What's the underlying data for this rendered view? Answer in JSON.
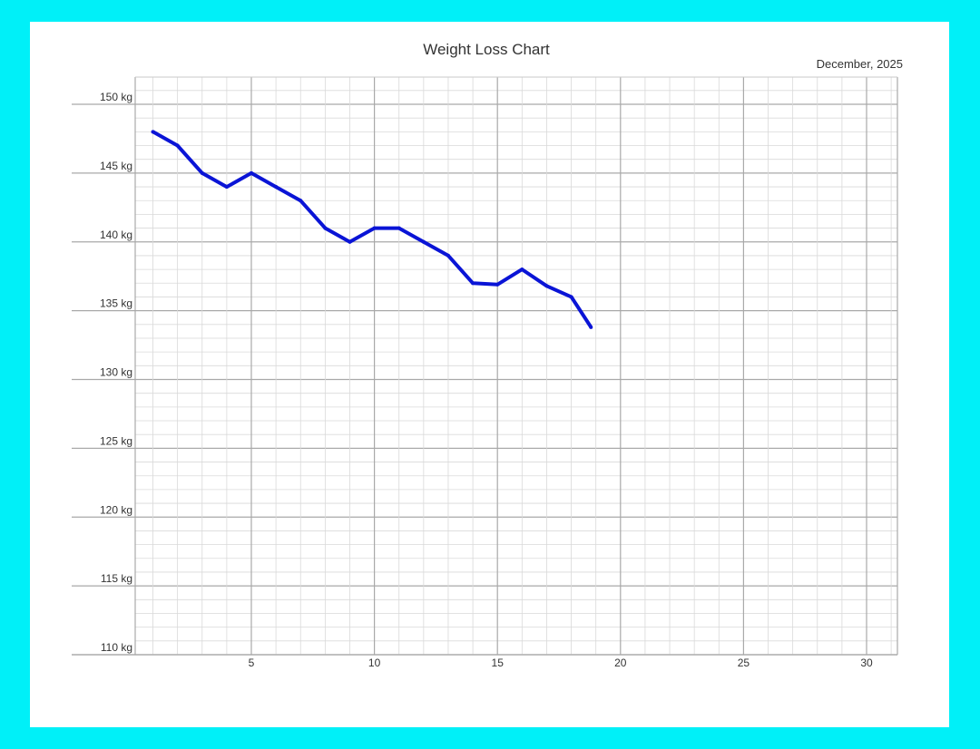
{
  "chart_data": {
    "type": "line",
    "title": "Weight Loss Chart",
    "subtitle": "December, 2025",
    "xlabel": "",
    "ylabel": "",
    "xlim": [
      0.5,
      31
    ],
    "ylim": [
      110,
      152
    ],
    "x_ticks": [
      5,
      10,
      15,
      20,
      25,
      30
    ],
    "x_tick_labels": [
      "5",
      "10",
      "15",
      "20",
      "25",
      "30"
    ],
    "y_ticks": [
      150,
      145,
      140,
      135,
      130,
      125,
      120,
      115,
      110
    ],
    "y_tick_labels": [
      "150 kg",
      "145 kg",
      "140 kg",
      "135 kg",
      "130 kg",
      "125 kg",
      "120 kg",
      "115 kg",
      "110 kg"
    ],
    "grid": true,
    "legend": "none",
    "line_color": "#0a14d6",
    "grid_color_major": "#a9a9a9",
    "grid_color_minor": "#d9d9d9",
    "series": [
      {
        "x": [
          1,
          2,
          3,
          4,
          5,
          6,
          7,
          8,
          9,
          10,
          11,
          12,
          13,
          14,
          15,
          16,
          17,
          18,
          18.8
        ],
        "values": [
          148,
          147,
          145,
          144,
          145,
          144,
          143,
          141,
          140,
          141,
          141,
          140,
          139,
          137,
          136.9,
          138,
          136.8,
          136,
          133.8
        ]
      }
    ]
  }
}
